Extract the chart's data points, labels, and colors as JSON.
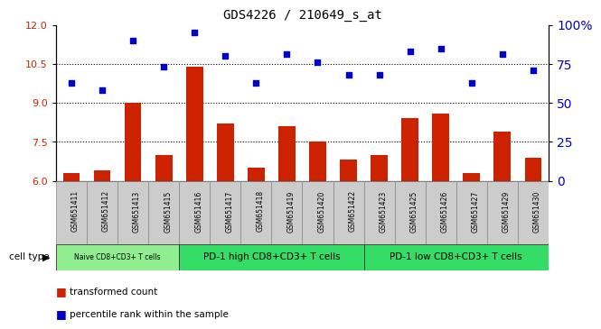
{
  "title": "GDS4226 / 210649_s_at",
  "samples": [
    "GSM651411",
    "GSM651412",
    "GSM651413",
    "GSM651415",
    "GSM651416",
    "GSM651417",
    "GSM651418",
    "GSM651419",
    "GSM651420",
    "GSM651422",
    "GSM651423",
    "GSM651425",
    "GSM651426",
    "GSM651427",
    "GSM651429",
    "GSM651430"
  ],
  "transformed_count": [
    6.3,
    6.4,
    9.0,
    7.0,
    10.4,
    8.2,
    6.5,
    8.1,
    7.5,
    6.8,
    7.0,
    8.4,
    8.6,
    6.3,
    7.9,
    6.9
  ],
  "percentile_rank": [
    63,
    58,
    90,
    73,
    95,
    80,
    63,
    81,
    76,
    68,
    68,
    83,
    85,
    63,
    81,
    71
  ],
  "ylim_left": [
    6,
    12
  ],
  "ylim_right": [
    0,
    100
  ],
  "yticks_left": [
    6,
    7.5,
    9,
    10.5,
    12
  ],
  "yticks_right": [
    0,
    25,
    50,
    75,
    100
  ],
  "groups": [
    {
      "label": "Naive CD8+CD3+ T cells",
      "start": 0,
      "end": 4,
      "color": "#90EE90"
    },
    {
      "label": "PD-1 high CD8+CD3+ T cells",
      "start": 4,
      "end": 10,
      "color": "#33DD66"
    },
    {
      "label": "PD-1 low CD8+CD3+ T cells",
      "start": 10,
      "end": 16,
      "color": "#33DD66"
    }
  ],
  "bar_color": "#CC2200",
  "scatter_color": "#0000CC",
  "tick_label_color_left": "#CC2200",
  "tick_label_color_right": "#0000CC",
  "cell_type_label": "cell type",
  "legend_bar_label": "transformed count",
  "legend_scatter_label": "percentile rank within the sample",
  "sample_box_color": "#CCCCCC",
  "hgrid_color": "#000000",
  "hgrid_ticks": [
    7.5,
    9.0,
    10.5
  ]
}
